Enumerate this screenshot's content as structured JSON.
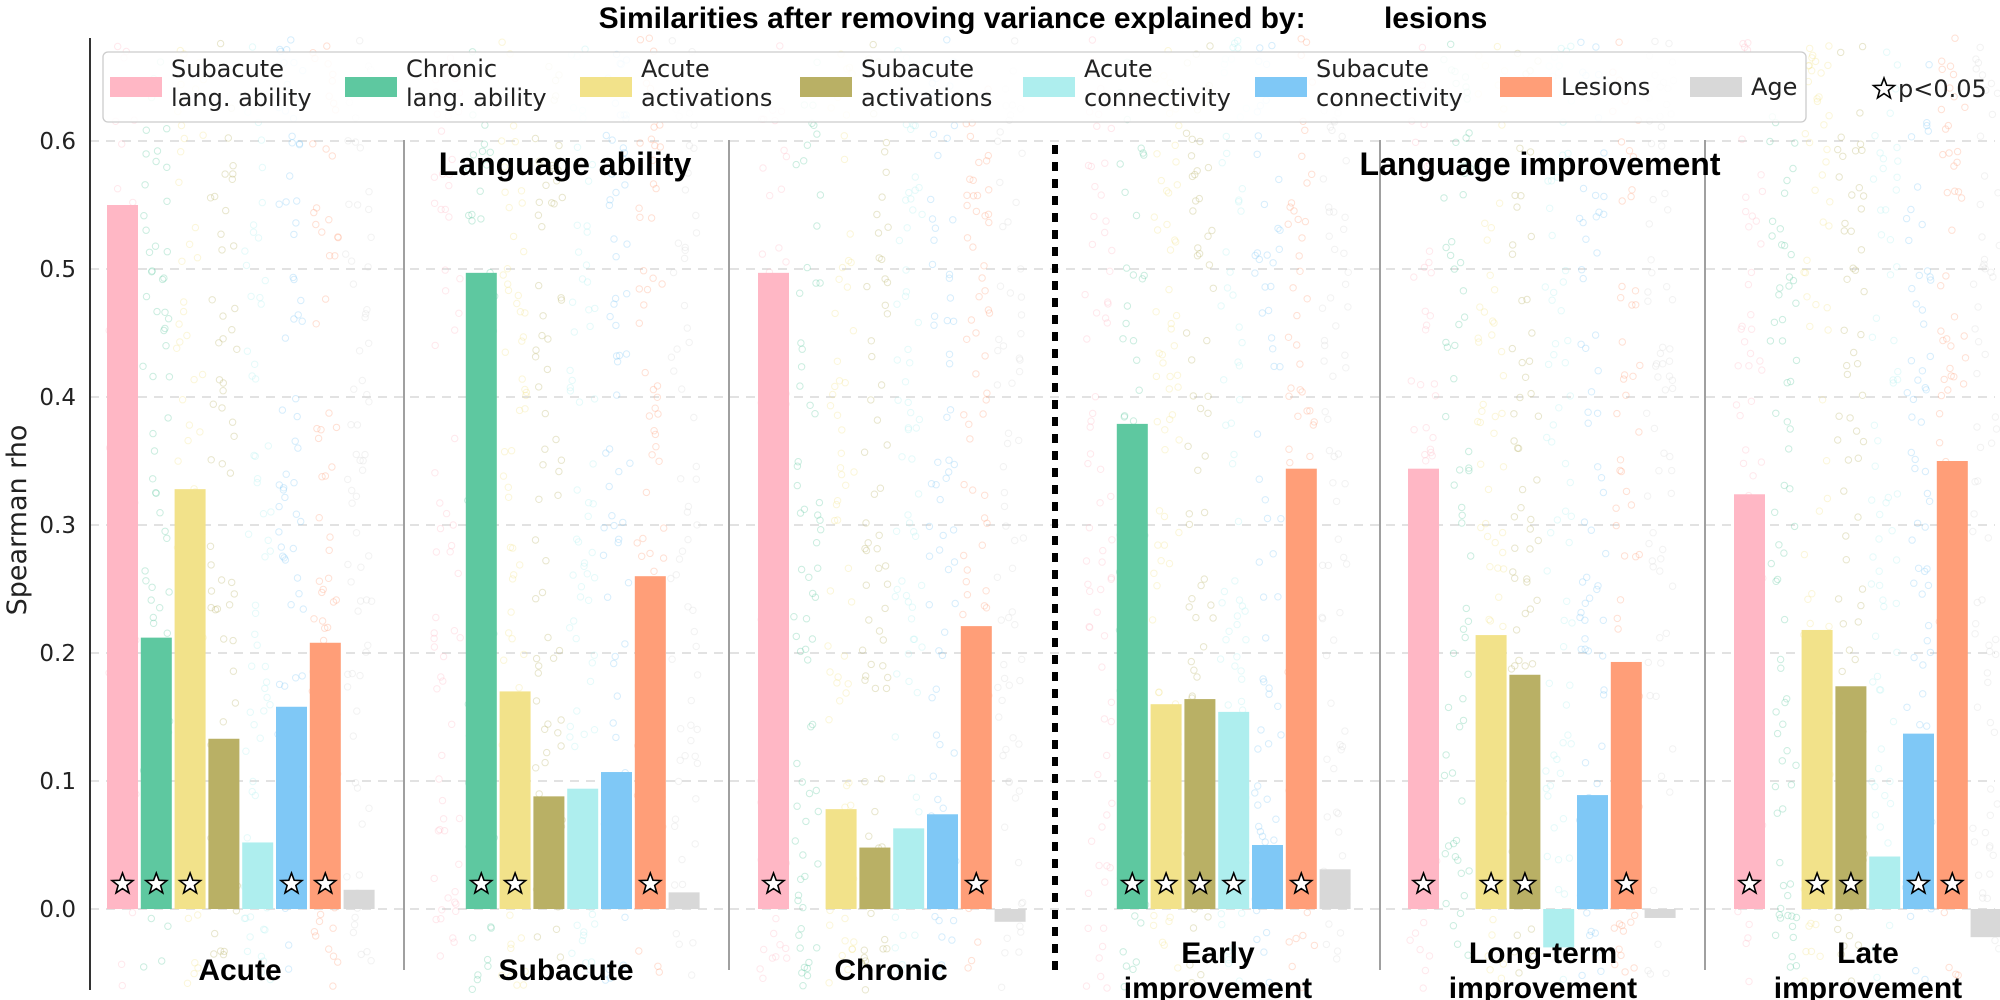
{
  "chart_data": {
    "type": "bar",
    "title_prefix": "Similarities after removing variance explained by:",
    "title_variable": "lesions",
    "xlabel": "",
    "ylabel": "Spearman rho",
    "ylim": [
      -0.06,
      0.68
    ],
    "yticks": [
      "0.0",
      "0.1",
      "0.2",
      "0.3",
      "0.4",
      "0.5",
      "0.6"
    ],
    "significance_label": "p<0.05",
    "grid": "horizontal dashed",
    "legend_placement": "top",
    "section_labels": [
      "Language ability",
      "Language improvement"
    ],
    "series": [
      {
        "name": "Subacute\nlang. ability",
        "color": "#ffb7c5"
      },
      {
        "name": "Chronic\nlang. ability",
        "color": "#5ec8a0"
      },
      {
        "name": "Acute\nactivations",
        "color": "#f2e28a"
      },
      {
        "name": "Subacute\nactivations",
        "color": "#b9b065"
      },
      {
        "name": "Acute\nconnectivity",
        "color": "#aeeeee"
      },
      {
        "name": "Subacute\nconnectivity",
        "color": "#7fc8f6"
      },
      {
        "name": "Lesions",
        "color": "#ff9e78"
      },
      {
        "name": "Age",
        "color": "#d8d8d8"
      }
    ],
    "groups": [
      {
        "label": "Acute",
        "values": [
          0.55,
          0.212,
          0.328,
          0.133,
          0.052,
          0.158,
          0.208,
          0.015
        ],
        "significant": [
          true,
          true,
          true,
          false,
          false,
          true,
          true,
          false
        ]
      },
      {
        "label": "Subacute",
        "values": [
          null,
          0.497,
          0.17,
          0.088,
          0.094,
          0.107,
          0.26,
          0.013
        ],
        "significant": [
          false,
          true,
          true,
          false,
          false,
          false,
          true,
          false
        ]
      },
      {
        "label": "Chronic",
        "values": [
          0.497,
          null,
          0.078,
          0.048,
          0.063,
          0.074,
          0.221,
          -0.01
        ],
        "significant": [
          true,
          false,
          false,
          false,
          false,
          false,
          true,
          false
        ]
      },
      {
        "label": "Early\nimprovement",
        "values": [
          null,
          0.379,
          0.16,
          0.164,
          0.154,
          0.05,
          0.344,
          0.031
        ],
        "significant": [
          false,
          true,
          true,
          true,
          true,
          false,
          true,
          false
        ]
      },
      {
        "label": "Long-term\nimprovement",
        "values": [
          0.344,
          null,
          0.214,
          0.183,
          -0.03,
          0.089,
          0.193,
          -0.007
        ],
        "significant": [
          true,
          false,
          true,
          true,
          false,
          false,
          true,
          false
        ]
      },
      {
        "label": "Late\nimprovement",
        "values": [
          0.324,
          null,
          0.218,
          0.174,
          0.041,
          0.137,
          0.35,
          -0.022
        ],
        "significant": [
          true,
          false,
          true,
          true,
          false,
          true,
          true,
          false
        ]
      }
    ]
  }
}
